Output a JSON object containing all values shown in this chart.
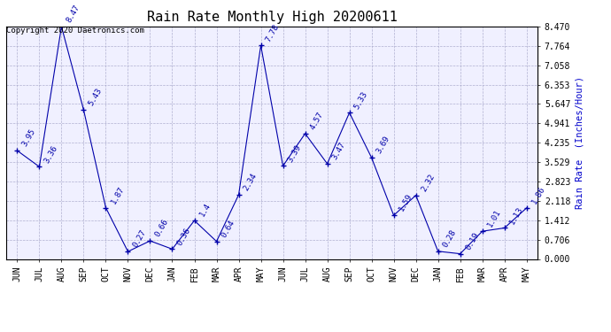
{
  "title": "Rain Rate Monthly High 20200611",
  "ylabel": "Rain Rate  (Inches/Hour)",
  "copyright": "Copyright 2020 Daetronics.com",
  "categories": [
    "JUN",
    "JUL",
    "AUG",
    "SEP",
    "OCT",
    "NOV",
    "DEC",
    "JAN",
    "FEB",
    "MAR",
    "APR",
    "MAY",
    "JUN",
    "JUL",
    "AUG",
    "SEP",
    "OCT",
    "NOV",
    "DEC",
    "JAN",
    "FEB",
    "MAR",
    "APR",
    "MAY"
  ],
  "values": [
    3.95,
    3.36,
    8.47,
    5.43,
    1.87,
    0.27,
    0.66,
    0.36,
    1.4,
    0.64,
    2.34,
    7.78,
    3.39,
    4.57,
    3.47,
    5.33,
    3.69,
    1.59,
    2.32,
    0.28,
    0.19,
    1.01,
    1.13,
    1.86
  ],
  "line_color": "#0000AA",
  "marker_color": "#0000AA",
  "fig_bg_color": "#ffffff",
  "plot_bg_color": "#f0f0ff",
  "grid_color": "#aaaacc",
  "title_color": "#000000",
  "ylabel_color": "#0000CC",
  "copyright_color": "#000000",
  "yticks": [
    0.0,
    0.706,
    1.412,
    2.118,
    2.823,
    3.529,
    4.235,
    4.941,
    5.647,
    6.353,
    7.058,
    7.764,
    8.47
  ],
  "title_fontsize": 11,
  "annot_fontsize": 6.5,
  "tick_fontsize": 7,
  "ylabel_fontsize": 7.5,
  "copyright_fontsize": 6.5
}
